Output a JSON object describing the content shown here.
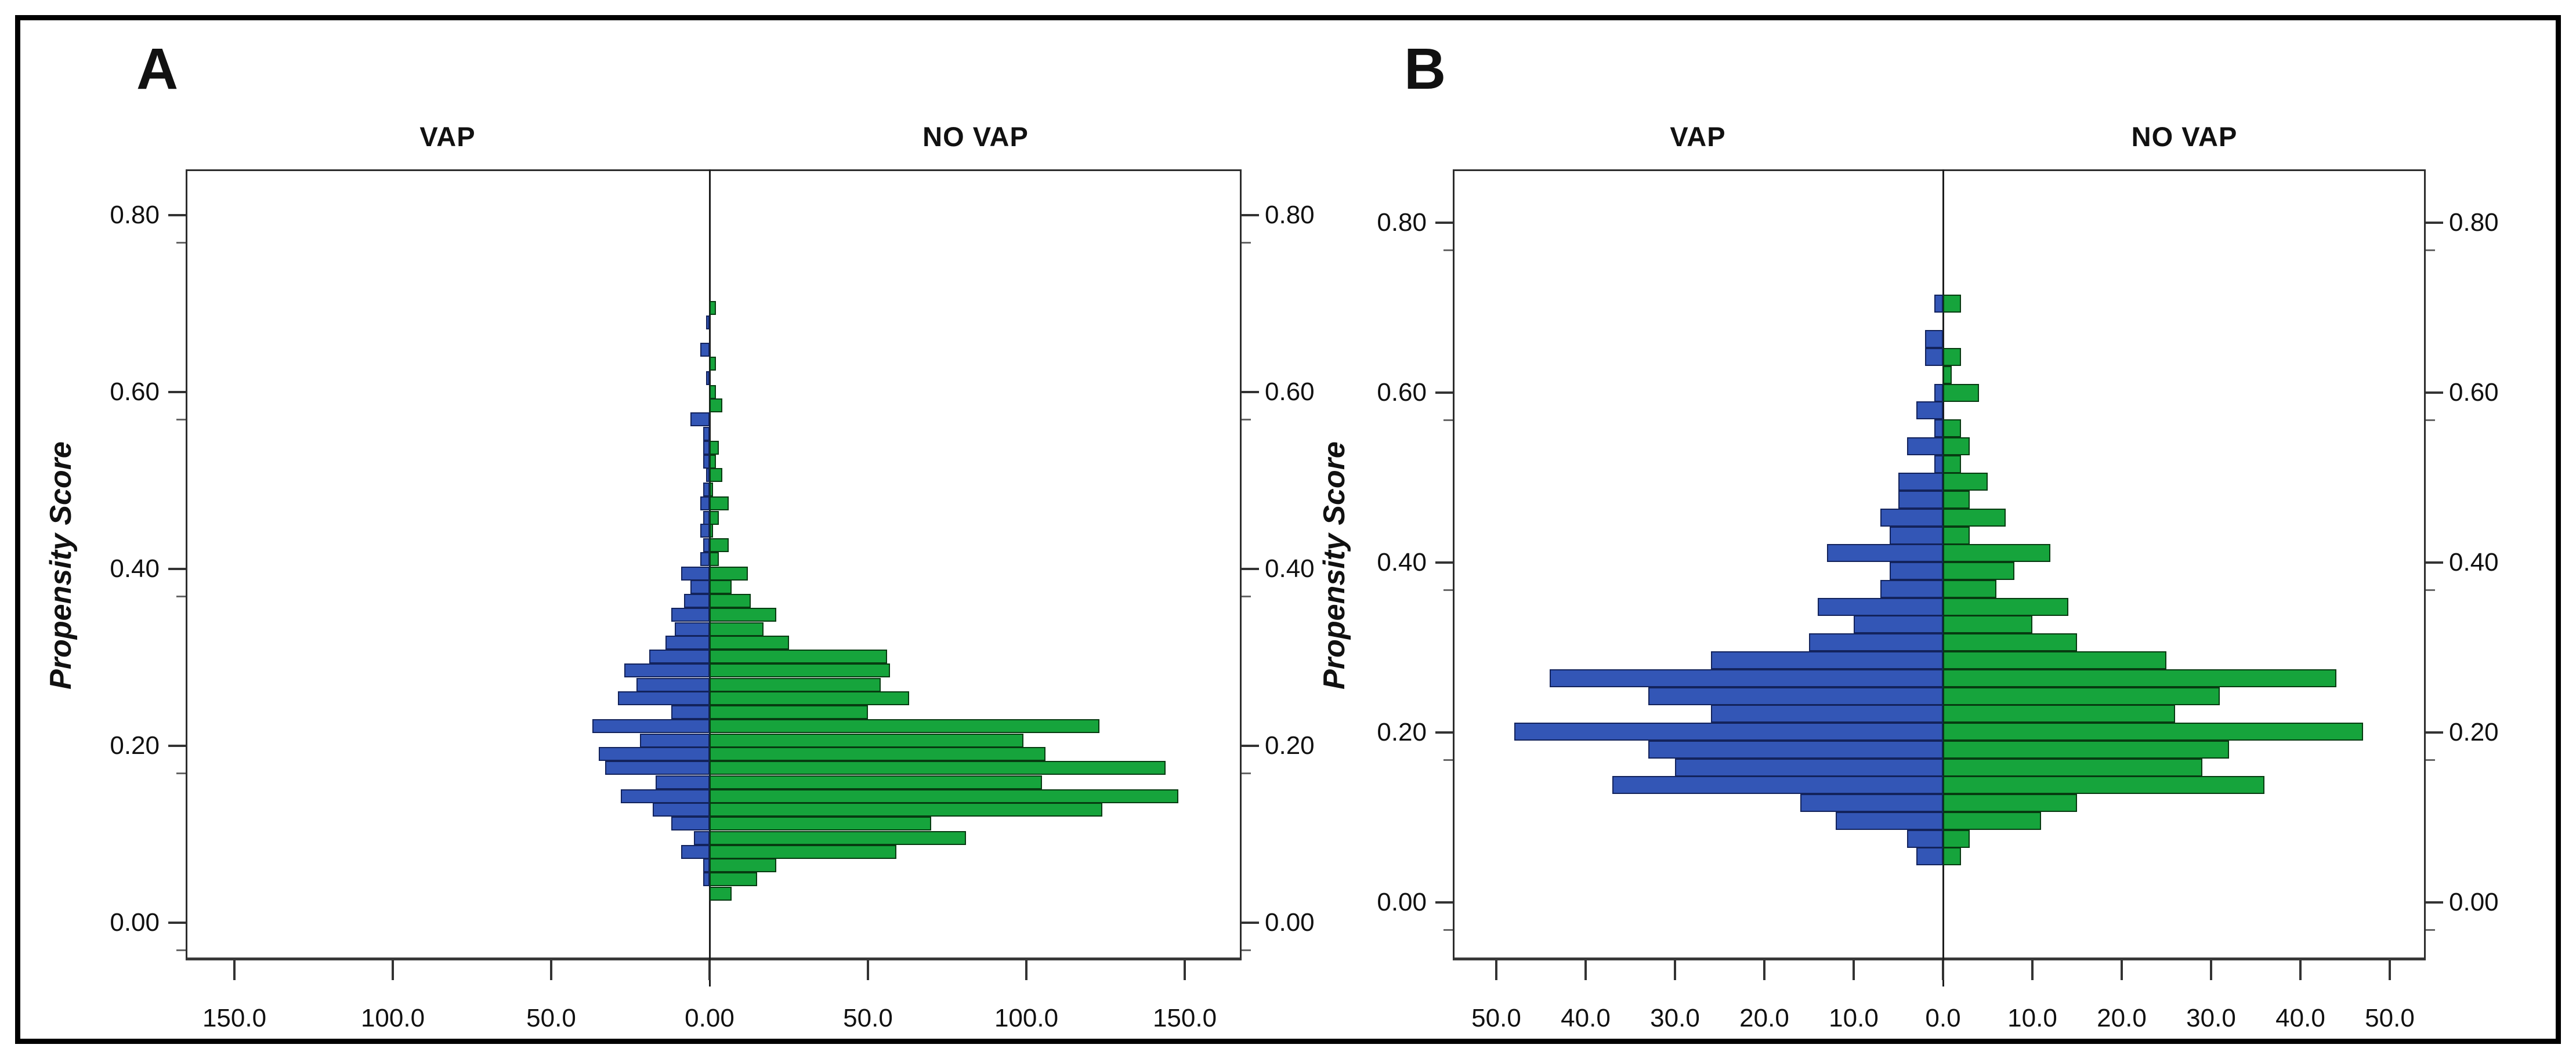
{
  "figure": {
    "background": "#ffffff",
    "border_color": "#000000"
  },
  "colors": {
    "vap_fill": "#3356b6",
    "vap_edge": "#13235c",
    "novap_fill": "#16a43c",
    "novap_edge": "#073b11",
    "axis": "#2d2d2d",
    "text": "#111111"
  },
  "chart_data": [
    {
      "type": "bar",
      "variant": "mirrored-histogram",
      "panel": "A",
      "left_header": "VAP",
      "right_header": "NO VAP",
      "y_axis_title": "Propensity Score",
      "y_tick_labels": [
        "0.80",
        "0.60",
        "0.40",
        "0.20",
        "0.00"
      ],
      "y_tick_values": [
        0.8,
        0.6,
        0.4,
        0.2,
        0.0
      ],
      "y_range": [
        0.0,
        0.85
      ],
      "x_tick_labels": [
        "150.0",
        "100.0",
        "50.0",
        "0.00",
        "50.0",
        "100.0",
        "150.0"
      ],
      "x_tick_values": [
        -150,
        -100,
        -50,
        0,
        50,
        100,
        150
      ],
      "x_range": [
        -165,
        165
      ],
      "bin_width": 0.0157,
      "legend_position": "none",
      "grid": false,
      "scores": [
        0.033,
        0.049,
        0.065,
        0.08,
        0.096,
        0.112,
        0.128,
        0.143,
        0.159,
        0.175,
        0.191,
        0.206,
        0.222,
        0.238,
        0.254,
        0.269,
        0.285,
        0.301,
        0.317,
        0.332,
        0.348,
        0.364,
        0.38,
        0.395,
        0.411,
        0.427,
        0.443,
        0.458,
        0.474,
        0.49,
        0.506,
        0.521,
        0.537,
        0.553,
        0.569,
        0.585,
        0.6,
        0.616,
        0.632,
        0.648,
        0.664,
        0.679,
        0.695
      ],
      "series": [
        {
          "name": "VAP",
          "side": "left",
          "values": [
            0,
            2,
            2,
            9,
            5,
            12,
            18,
            28,
            17,
            33,
            35,
            22,
            37,
            12,
            29,
            23,
            27,
            19,
            14,
            11,
            12,
            8,
            6,
            9,
            3,
            2,
            3,
            2,
            3,
            2,
            1,
            2,
            2,
            2,
            6,
            0,
            0,
            1,
            0,
            3,
            0,
            1,
            0
          ]
        },
        {
          "name": "NO VAP",
          "side": "right",
          "values": [
            7,
            15,
            21,
            59,
            81,
            70,
            124,
            148,
            105,
            144,
            106,
            99,
            123,
            50,
            63,
            54,
            57,
            56,
            25,
            17,
            21,
            13,
            7,
            12,
            3,
            6,
            1,
            3,
            6,
            1,
            4,
            2,
            3,
            0,
            0,
            4,
            2,
            0,
            2,
            0,
            0,
            0,
            2
          ]
        }
      ]
    },
    {
      "type": "bar",
      "variant": "mirrored-histogram",
      "panel": "B",
      "left_header": "VAP",
      "right_header": "NO VAP",
      "y_axis_title": "Propensity Score",
      "y_tick_labels": [
        "0.80",
        "0.60",
        "0.40",
        "0.20",
        "0.00"
      ],
      "y_tick_values": [
        0.8,
        0.6,
        0.4,
        0.2,
        0.0
      ],
      "y_range": [
        0.0,
        0.85
      ],
      "x_tick_labels": [
        "50.0",
        "40.0",
        "30.0",
        "20.0",
        "10.0",
        "0.0",
        "10.0",
        "20.0",
        "30.0",
        "40.0",
        "50.0"
      ],
      "x_tick_values": [
        -50,
        -40,
        -30,
        -20,
        -10,
        0,
        10,
        20,
        30,
        40,
        50
      ],
      "x_range": [
        -55,
        55
      ],
      "bin_width": 0.021,
      "legend_position": "none",
      "grid": false,
      "scores": [
        0.054,
        0.075,
        0.096,
        0.117,
        0.138,
        0.159,
        0.18,
        0.201,
        0.222,
        0.243,
        0.264,
        0.285,
        0.306,
        0.327,
        0.348,
        0.369,
        0.39,
        0.411,
        0.432,
        0.453,
        0.474,
        0.495,
        0.516,
        0.537,
        0.558,
        0.579,
        0.6,
        0.621,
        0.642,
        0.663,
        0.684,
        0.705
      ],
      "series": [
        {
          "name": "VAP",
          "side": "left",
          "values": [
            3,
            4,
            12,
            16,
            37,
            30,
            33,
            48,
            26,
            33,
            44,
            26,
            15,
            10,
            14,
            7,
            6,
            13,
            6,
            7,
            5,
            5,
            1,
            4,
            1,
            3,
            1,
            0,
            2,
            2,
            0,
            1
          ]
        },
        {
          "name": "NO VAP",
          "side": "right",
          "values": [
            2,
            3,
            11,
            15,
            36,
            29,
            32,
            47,
            26,
            31,
            44,
            25,
            15,
            10,
            14,
            6,
            8,
            12,
            3,
            7,
            3,
            5,
            2,
            3,
            2,
            0,
            4,
            1,
            2,
            0,
            0,
            2
          ]
        }
      ]
    }
  ]
}
